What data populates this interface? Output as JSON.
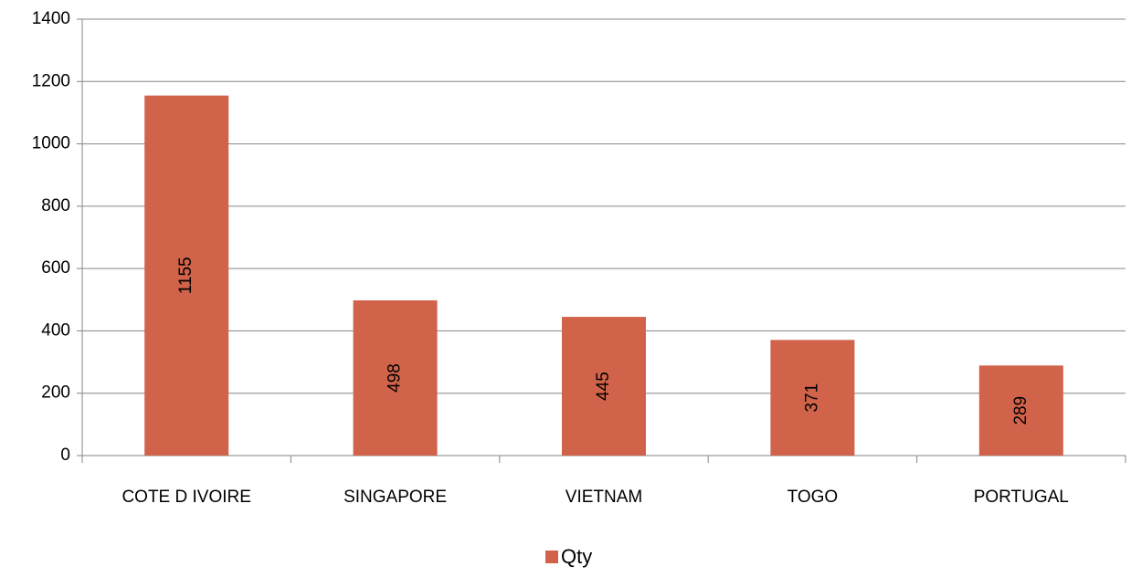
{
  "chart_data": {
    "type": "bar",
    "categories": [
      "COTE D IVOIRE",
      "SINGAPORE",
      "VIETNAM",
      "TOGO",
      "PORTUGAL"
    ],
    "series": [
      {
        "name": "Qty",
        "color": "#d1634a",
        "values": [
          1155,
          498,
          445,
          371,
          289
        ]
      }
    ],
    "ylim": [
      0,
      1400
    ],
    "yticks": [
      0,
      200,
      400,
      600,
      800,
      1000,
      1200,
      1400
    ],
    "grid": true,
    "legend": "bottom"
  }
}
